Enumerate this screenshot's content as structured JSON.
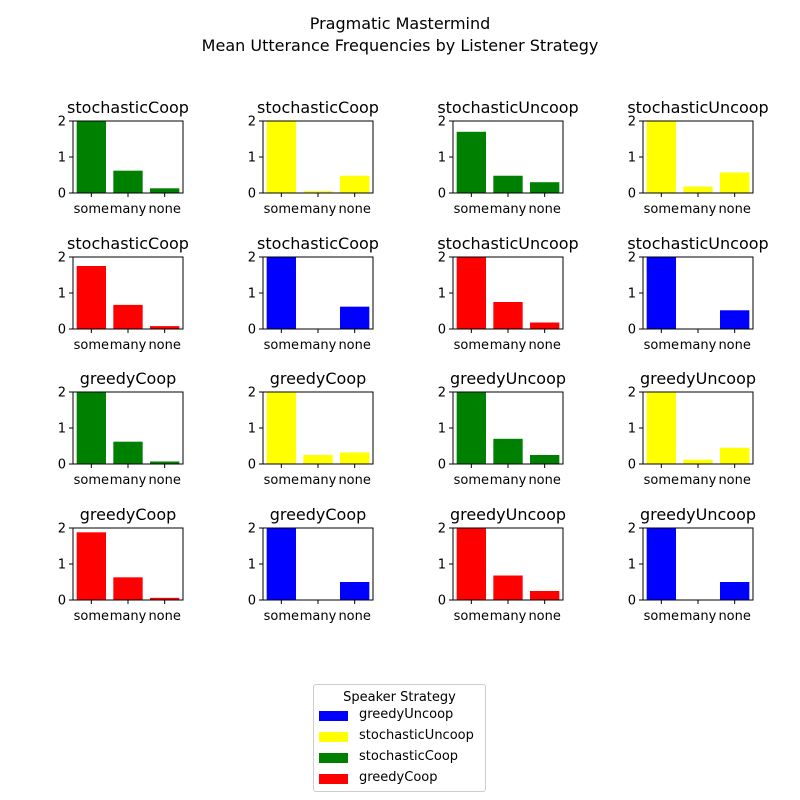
{
  "figure": {
    "title": "Pragmatic Mastermind",
    "subtitle": "Mean Utterance Frequencies by Listener Strategy"
  },
  "legend": {
    "title": "Speaker Strategy",
    "items": [
      {
        "label": "greedyUncoop",
        "color": "#0000ff"
      },
      {
        "label": "stochasticUncoop",
        "color": "#ffff00"
      },
      {
        "label": "stochasticCoop",
        "color": "#008000"
      },
      {
        "label": "greedyCoop",
        "color": "#ff0000"
      }
    ]
  },
  "chart_data": [
    {
      "type": "bar",
      "title": "stochasticCoop",
      "color": "#008000",
      "categories": [
        "some",
        "many",
        "none"
      ],
      "values": [
        2.0,
        0.62,
        0.13
      ],
      "ylim": [
        0,
        2
      ],
      "yticks": [
        "0",
        "1",
        "2"
      ]
    },
    {
      "type": "bar",
      "title": "stochasticCoop",
      "color": "#ffff00",
      "categories": [
        "some",
        "many",
        "none"
      ],
      "values": [
        2.0,
        0.05,
        0.48
      ],
      "ylim": [
        0,
        2
      ],
      "yticks": [
        "0",
        "1",
        "2"
      ]
    },
    {
      "type": "bar",
      "title": "stochasticUncoop",
      "color": "#008000",
      "categories": [
        "some",
        "many",
        "none"
      ],
      "values": [
        1.7,
        0.48,
        0.3
      ],
      "ylim": [
        0,
        2
      ],
      "yticks": [
        "0",
        "1",
        "2"
      ]
    },
    {
      "type": "bar",
      "title": "stochasticUncoop",
      "color": "#ffff00",
      "categories": [
        "some",
        "many",
        "none"
      ],
      "values": [
        2.0,
        0.18,
        0.57
      ],
      "ylim": [
        0,
        2
      ],
      "yticks": [
        "0",
        "1",
        "2"
      ]
    },
    {
      "type": "bar",
      "title": "stochasticCoop",
      "color": "#ff0000",
      "categories": [
        "some",
        "many",
        "none"
      ],
      "values": [
        1.75,
        0.67,
        0.08
      ],
      "ylim": [
        0,
        2
      ],
      "yticks": [
        "0",
        "1",
        "2"
      ]
    },
    {
      "type": "bar",
      "title": "stochasticCoop",
      "color": "#0000ff",
      "categories": [
        "some",
        "many",
        "none"
      ],
      "values": [
        2.0,
        0.0,
        0.62
      ],
      "ylim": [
        0,
        2
      ],
      "yticks": [
        "0",
        "1",
        "2"
      ]
    },
    {
      "type": "bar",
      "title": "stochasticUncoop",
      "color": "#ff0000",
      "categories": [
        "some",
        "many",
        "none"
      ],
      "values": [
        2.0,
        0.75,
        0.18
      ],
      "ylim": [
        0,
        2
      ],
      "yticks": [
        "0",
        "1",
        "2"
      ]
    },
    {
      "type": "bar",
      "title": "stochasticUncoop",
      "color": "#0000ff",
      "categories": [
        "some",
        "many",
        "none"
      ],
      "values": [
        2.0,
        0.0,
        0.52
      ],
      "ylim": [
        0,
        2
      ],
      "yticks": [
        "0",
        "1",
        "2"
      ]
    },
    {
      "type": "bar",
      "title": "greedyCoop",
      "color": "#008000",
      "categories": [
        "some",
        "many",
        "none"
      ],
      "values": [
        2.0,
        0.62,
        0.07
      ],
      "ylim": [
        0,
        2
      ],
      "yticks": [
        "0",
        "1",
        "2"
      ]
    },
    {
      "type": "bar",
      "title": "greedyCoop",
      "color": "#ffff00",
      "categories": [
        "some",
        "many",
        "none"
      ],
      "values": [
        2.0,
        0.25,
        0.32
      ],
      "ylim": [
        0,
        2
      ],
      "yticks": [
        "0",
        "1",
        "2"
      ]
    },
    {
      "type": "bar",
      "title": "greedyUncoop",
      "color": "#008000",
      "categories": [
        "some",
        "many",
        "none"
      ],
      "values": [
        2.0,
        0.7,
        0.25
      ],
      "ylim": [
        0,
        2
      ],
      "yticks": [
        "0",
        "1",
        "2"
      ]
    },
    {
      "type": "bar",
      "title": "greedyUncoop",
      "color": "#ffff00",
      "categories": [
        "some",
        "many",
        "none"
      ],
      "values": [
        2.0,
        0.12,
        0.45
      ],
      "ylim": [
        0,
        2
      ],
      "yticks": [
        "0",
        "1",
        "2"
      ]
    },
    {
      "type": "bar",
      "title": "greedyCoop",
      "color": "#ff0000",
      "categories": [
        "some",
        "many",
        "none"
      ],
      "values": [
        1.88,
        0.63,
        0.06
      ],
      "ylim": [
        0,
        2
      ],
      "yticks": [
        "0",
        "1",
        "2"
      ]
    },
    {
      "type": "bar",
      "title": "greedyCoop",
      "color": "#0000ff",
      "categories": [
        "some",
        "many",
        "none"
      ],
      "values": [
        2.0,
        0.0,
        0.5
      ],
      "ylim": [
        0,
        2
      ],
      "yticks": [
        "0",
        "1",
        "2"
      ]
    },
    {
      "type": "bar",
      "title": "greedyUncoop",
      "color": "#ff0000",
      "categories": [
        "some",
        "many",
        "none"
      ],
      "values": [
        2.0,
        0.68,
        0.25
      ],
      "ylim": [
        0,
        2
      ],
      "yticks": [
        "0",
        "1",
        "2"
      ]
    },
    {
      "type": "bar",
      "title": "greedyUncoop",
      "color": "#0000ff",
      "categories": [
        "some",
        "many",
        "none"
      ],
      "values": [
        2.0,
        0.0,
        0.5
      ],
      "ylim": [
        0,
        2
      ],
      "yticks": [
        "0",
        "1",
        "2"
      ]
    }
  ]
}
